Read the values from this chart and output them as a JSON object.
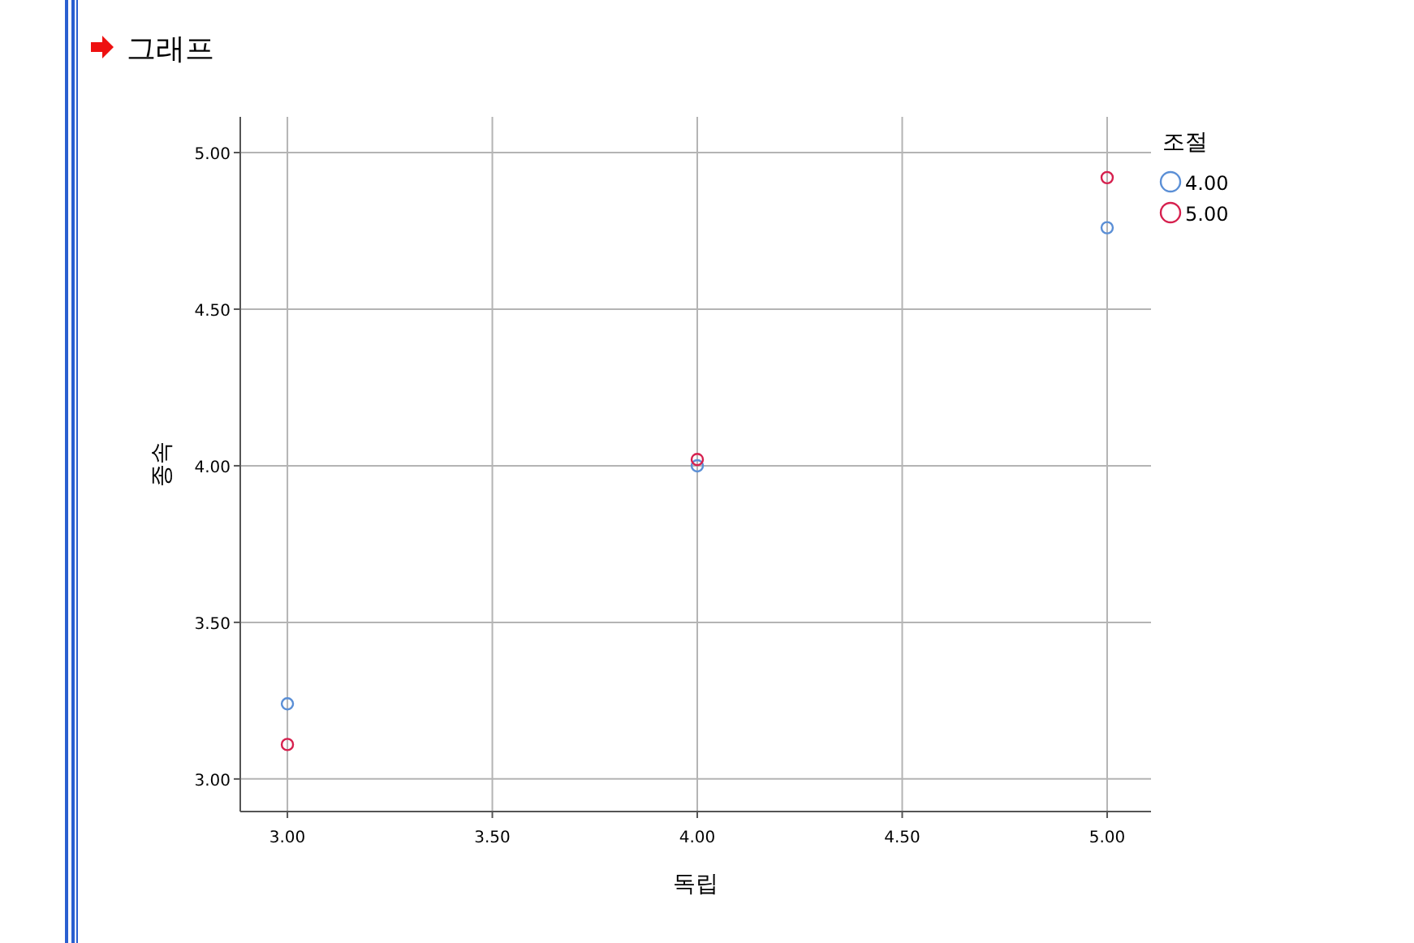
{
  "chart_data": {
    "type": "scatter",
    "title": "그래프",
    "xlabel": "독립",
    "ylabel": "종속",
    "legend_title": "조절",
    "x": [
      3,
      4,
      5
    ],
    "series": [
      {
        "name": "4.00",
        "color": "#5b8fd6",
        "values": [
          3.24,
          4.0,
          4.76
        ]
      },
      {
        "name": "5.00",
        "color": "#d6204e",
        "values": [
          3.11,
          4.02,
          4.92
        ]
      }
    ],
    "xlim": [
      2.885,
      5.107
    ],
    "ylim": [
      2.896,
      5.114
    ],
    "xticks": [
      {
        "value": 3,
        "label": "3.00"
      },
      {
        "value": 3.5,
        "label": "3.50"
      },
      {
        "value": 4,
        "label": "4.00"
      },
      {
        "value": 4.5,
        "label": "4.50"
      },
      {
        "value": 5,
        "label": "5.00"
      }
    ],
    "yticks": [
      {
        "value": 3,
        "label": "3.00"
      },
      {
        "value": 3.5,
        "label": "3.50"
      },
      {
        "value": 4,
        "label": "4.00"
      },
      {
        "value": 4.5,
        "label": "4.50"
      },
      {
        "value": 5,
        "label": "5.00"
      }
    ],
    "grid": true,
    "legend": "top right",
    "marker": "circle"
  }
}
